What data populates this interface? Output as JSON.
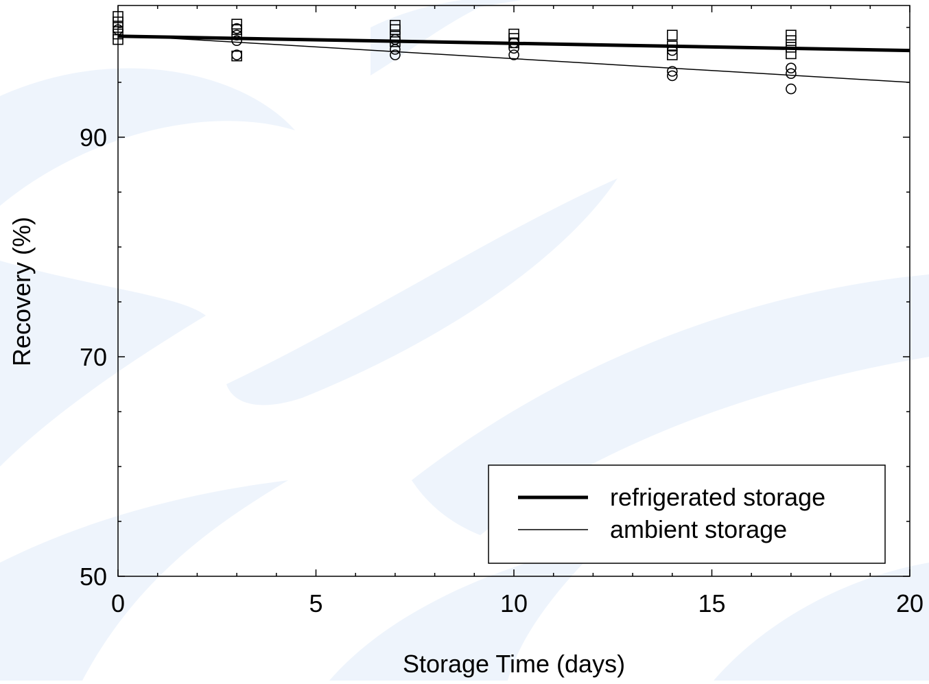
{
  "chart_data": {
    "type": "scatter",
    "title": "",
    "xlabel": "Storage Time (days)",
    "ylabel": "Recovery (%)",
    "xlim": [
      0,
      20
    ],
    "ylim": [
      50,
      102
    ],
    "x_ticks": [
      0,
      5,
      10,
      15,
      20
    ],
    "x_tick_labels": [
      "0",
      "5",
      "10",
      "15",
      "20"
    ],
    "y_ticks": [
      50,
      70,
      90
    ],
    "y_tick_labels": [
      "50",
      "70",
      "90"
    ],
    "grid": false,
    "legend_position": "bottom-right",
    "series": [
      {
        "name": "refrigerated storage",
        "marker": "square",
        "color": "#000000",
        "points": [
          [
            0,
            101.0
          ],
          [
            0,
            100.5
          ],
          [
            0,
            100.0
          ],
          [
            0,
            99.4
          ],
          [
            0,
            98.9
          ],
          [
            3,
            100.3
          ],
          [
            3,
            99.8
          ],
          [
            3,
            97.4
          ],
          [
            7,
            100.2
          ],
          [
            7,
            99.8
          ],
          [
            7,
            99.2
          ],
          [
            7,
            98.7
          ],
          [
            10,
            99.4
          ],
          [
            10,
            99.0
          ],
          [
            10,
            98.6
          ],
          [
            14,
            99.3
          ],
          [
            14,
            98.3
          ],
          [
            14,
            97.5
          ],
          [
            17,
            99.3
          ],
          [
            17,
            98.8
          ],
          [
            17,
            98.2
          ],
          [
            17,
            97.6
          ]
        ],
        "fit_line": {
          "x": [
            0,
            20
          ],
          "y": [
            99.2,
            97.9
          ]
        }
      },
      {
        "name": "ambient storage",
        "marker": "circle",
        "color": "#000000",
        "points": [
          [
            0,
            99.8
          ],
          [
            3,
            99.9
          ],
          [
            3,
            99.3
          ],
          [
            3,
            98.8
          ],
          [
            3,
            97.5
          ],
          [
            7,
            98.9
          ],
          [
            7,
            98.0
          ],
          [
            7,
            97.5
          ],
          [
            10,
            98.6
          ],
          [
            10,
            98.1
          ],
          [
            10,
            97.5
          ],
          [
            14,
            97.9
          ],
          [
            14,
            96.0
          ],
          [
            14,
            95.6
          ],
          [
            17,
            96.3
          ],
          [
            17,
            95.8
          ],
          [
            17,
            94.4
          ]
        ],
        "fit_line": {
          "x": [
            0,
            20
          ],
          "y": [
            99.3,
            95.0
          ]
        }
      }
    ]
  }
}
